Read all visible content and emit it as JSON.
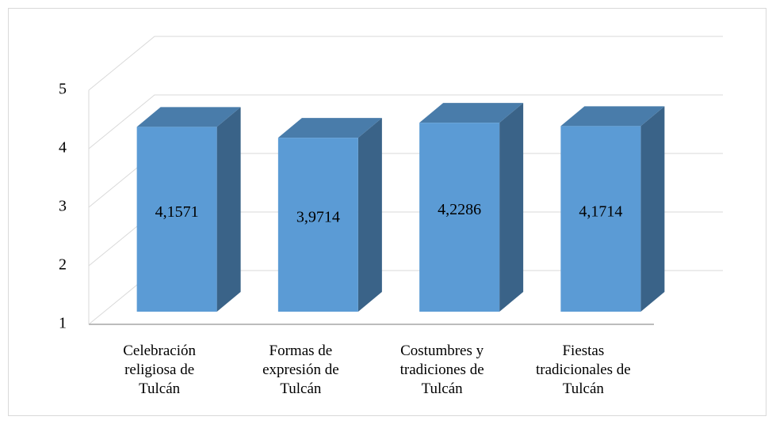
{
  "chart_data": {
    "type": "bar3d",
    "categories": [
      "Celebración religiosa de Tulcán",
      "Formas de expresión de Tulcán",
      "Costumbres y tradiciones de Tulcán",
      "Fiestas tradicionales de Tulcán"
    ],
    "values": [
      4.1571,
      3.9714,
      4.2286,
      4.1714
    ],
    "value_labels": [
      "4,1571",
      "3,9714",
      "4,2286",
      "4,1714"
    ],
    "color": "#5b9bd5",
    "ylim": [
      1,
      5
    ],
    "yticks": [
      1,
      2,
      3,
      4,
      5
    ],
    "grid": true
  }
}
